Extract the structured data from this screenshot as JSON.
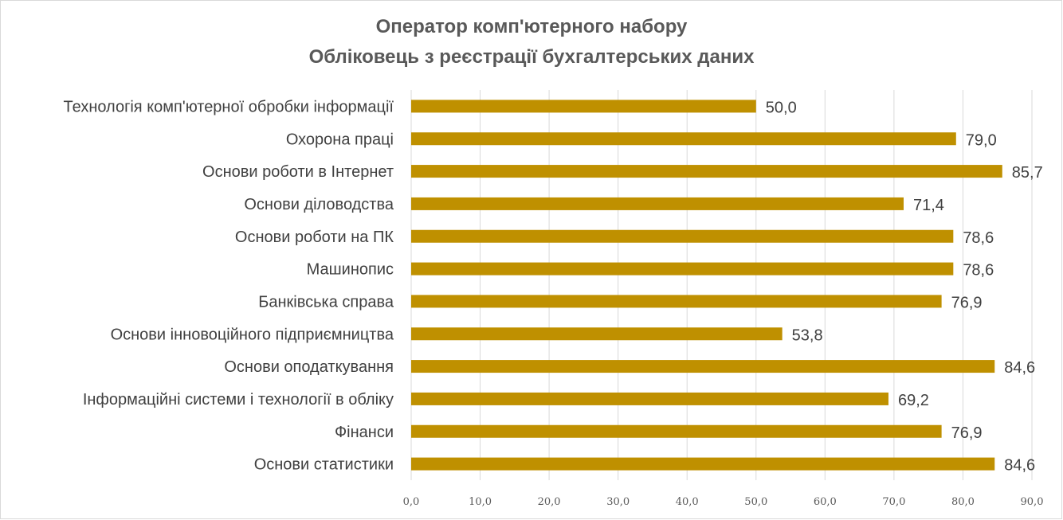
{
  "chart_data": {
    "type": "bar",
    "orientation": "horizontal",
    "title": "Оператор комп'ютерного набору",
    "subtitle": "Обліковець з реєстрації бухгалтерських даних",
    "categories": [
      "Технологія комп'ютерної обробки інформації",
      "Охорона праці",
      "Основи роботи в Інтернет",
      "Основи діловодства",
      "Основи роботи на ПК",
      "Машинопис ",
      "Банківська справа",
      "Основи інновоційного підприємництва",
      "Основи оподаткування",
      "Інформаційні системи і технології в обліку",
      "Фінанси",
      "Основи статистики"
    ],
    "values": [
      50.0,
      79.0,
      85.7,
      71.4,
      78.6,
      78.6,
      76.9,
      53.8,
      84.6,
      69.2,
      76.9,
      84.6
    ],
    "value_labels": [
      "50,0",
      "79,0",
      "85,7",
      "71,4",
      "78,6",
      "78,6",
      "76,9",
      "53,8",
      "84,6",
      "69,2",
      "76,9",
      "84,6"
    ],
    "xlim": [
      0,
      90
    ],
    "xticks": [
      "0,0",
      "10,0",
      "20,0",
      "30,0",
      "40,0",
      "50,0",
      "60,0",
      "70,0",
      "80,0",
      "90,0"
    ],
    "xlabel": "",
    "ylabel": "",
    "grid": true,
    "legend": "none",
    "bar_color": "#bf9000"
  }
}
